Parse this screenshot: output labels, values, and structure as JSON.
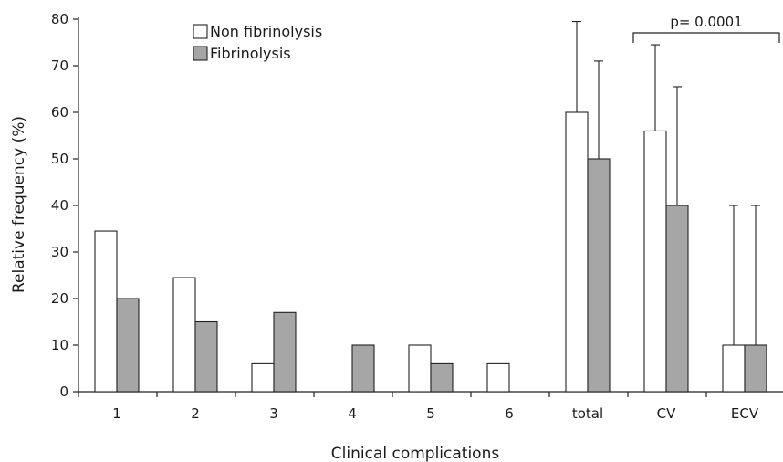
{
  "chart_data": {
    "type": "bar",
    "categories": [
      "1",
      "2",
      "3",
      "4",
      "5",
      "6",
      "total",
      "CV",
      "ECV"
    ],
    "series": [
      {
        "name": "Non fibrinolysis",
        "color": "#ffffff",
        "values": [
          34.5,
          24.5,
          6,
          0,
          10,
          6,
          60,
          56,
          10
        ],
        "error_upper": [
          null,
          null,
          null,
          null,
          null,
          null,
          79.5,
          74.5,
          40
        ]
      },
      {
        "name": "Fibrinolysis",
        "color": "#a6a6a6",
        "values": [
          20,
          15,
          17,
          10,
          6,
          0,
          50,
          40,
          10
        ],
        "error_upper": [
          null,
          null,
          null,
          null,
          null,
          null,
          71,
          65.5,
          40
        ]
      }
    ],
    "xlabel": "Clinical complications",
    "ylabel": "Relative frequency (%)",
    "ylim": [
      0,
      80
    ],
    "yticks": [
      0,
      10,
      20,
      30,
      40,
      50,
      60,
      70,
      80
    ],
    "legend_position": "top-left",
    "grid": false,
    "annotations": [
      {
        "text": "p= 0.0001",
        "from_category": "CV",
        "to_category": "ECV"
      }
    ]
  }
}
